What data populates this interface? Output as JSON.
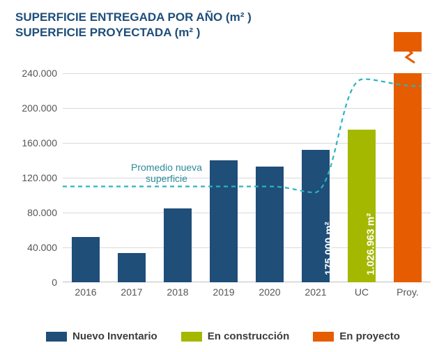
{
  "title_line1": "SUPERFICIE ENTREGADA POR AÑO (m² )",
  "title_line2": "SUPERFICIE PROYECTADA (m² )",
  "chart": {
    "type": "bar",
    "background_color": "#ffffff",
    "grid_color": "#d9d9d9",
    "axis_color": "#bfbfbf",
    "title_color": "#1f4e79",
    "title_fontsize": 17,
    "label_fontsize": 14,
    "y": {
      "min": 0,
      "max": 260000,
      "tick_step": 40000,
      "ticks": [
        0,
        40000,
        80000,
        120000,
        160000,
        200000,
        240000
      ],
      "tick_labels": [
        "0",
        "40.000",
        "80.000",
        "120.000",
        "160.000",
        "200.000",
        "240.000"
      ]
    },
    "categories": [
      "2016",
      "2017",
      "2018",
      "2019",
      "2020",
      "2021",
      "UC",
      "Proy."
    ],
    "bars": [
      {
        "value": 52000,
        "color": "#1f4e79",
        "series": "nuevo"
      },
      {
        "value": 34000,
        "color": "#1f4e79",
        "series": "nuevo"
      },
      {
        "value": 85000,
        "color": "#1f4e79",
        "series": "nuevo"
      },
      {
        "value": 140000,
        "color": "#1f4e79",
        "series": "nuevo"
      },
      {
        "value": 133000,
        "color": "#1f4e79",
        "series": "nuevo"
      },
      {
        "value": 152000,
        "color": "#1f4e79",
        "series": "nuevo"
      },
      {
        "value": 175000,
        "color": "#a4b800",
        "series": "uc",
        "label": "175.000 m²"
      },
      {
        "value": 240000,
        "color": "#e65c00",
        "series": "proy",
        "label": "1.026.963 m²",
        "broken_axis": true,
        "actual_value": 1026963
      }
    ],
    "bar_width_ratio": 0.62,
    "avg_line": {
      "label": "Promedio nueva\nsuperficie",
      "color": "#2bb3c0",
      "dash": "6,5",
      "width": 2.2,
      "points_y": [
        110000,
        110000,
        110000,
        110000,
        110000,
        103000,
        233000,
        225000
      ]
    }
  },
  "legend": {
    "items": [
      {
        "label": "Nuevo Inventario",
        "color": "#1f4e79"
      },
      {
        "label": "En construcción",
        "color": "#a4b800"
      },
      {
        "label": "En proyecto",
        "color": "#e65c00"
      }
    ]
  }
}
